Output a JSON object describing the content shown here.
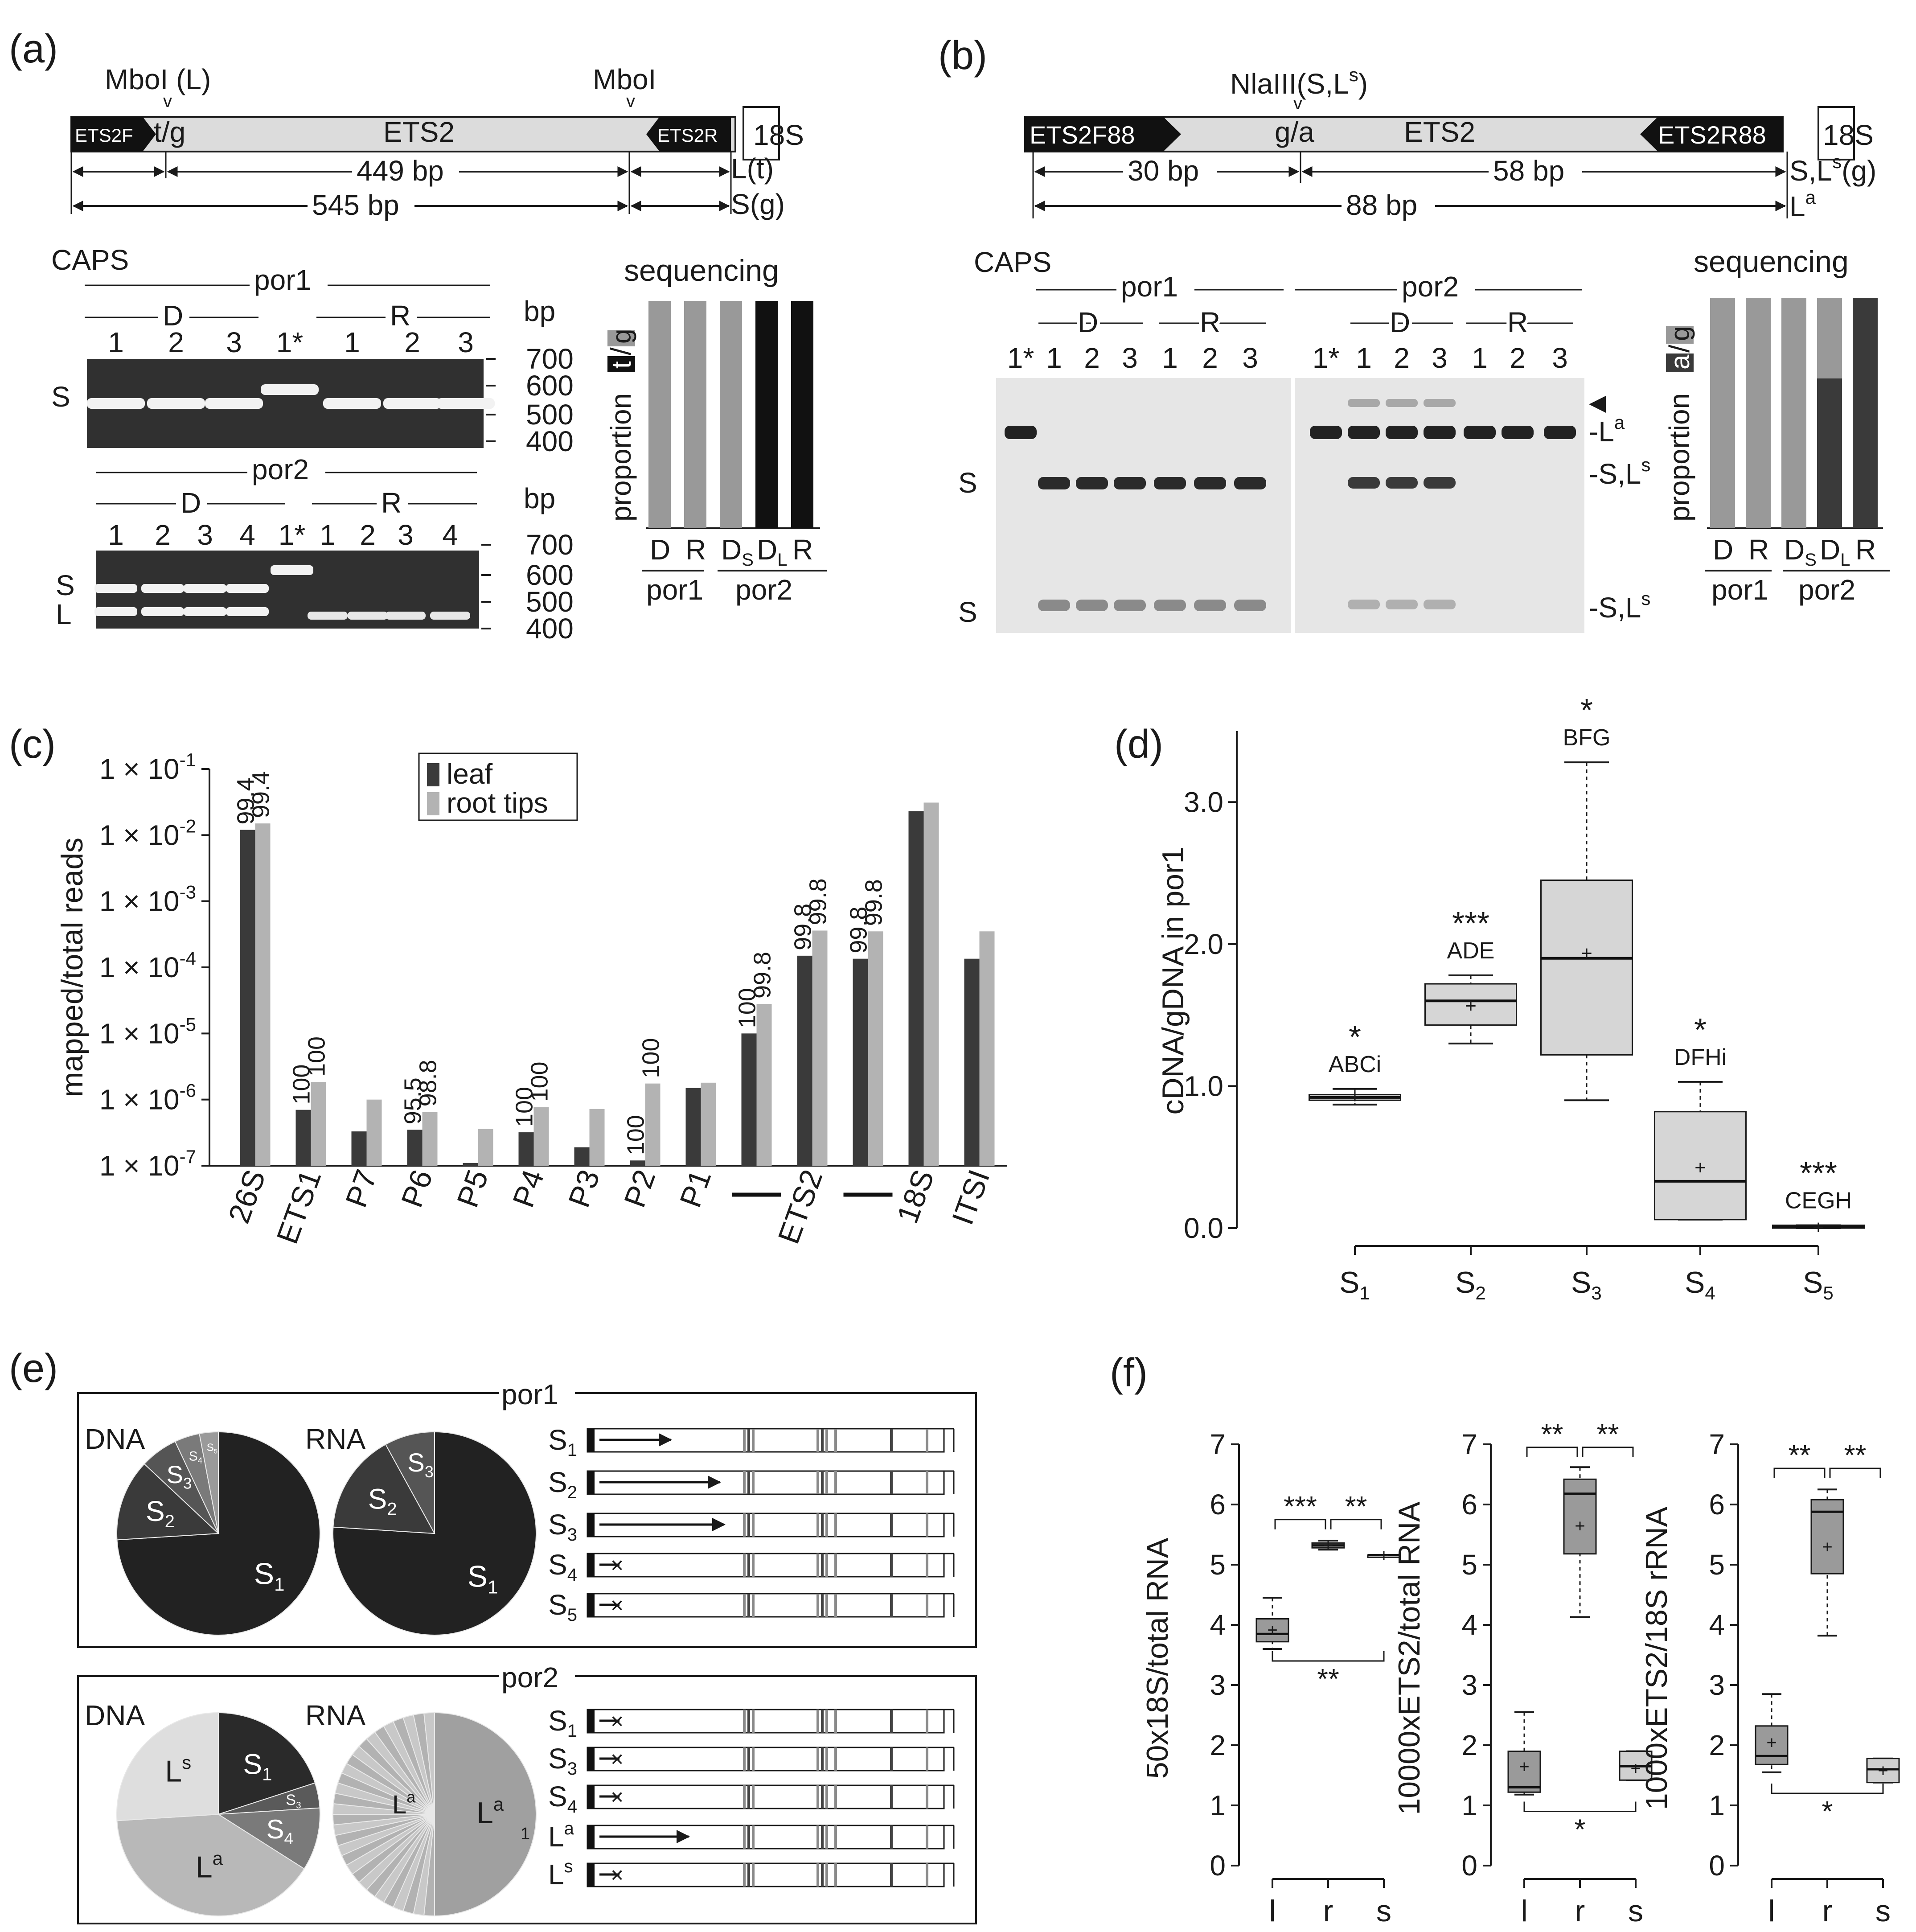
{
  "panels": {
    "a": {
      "label": "(a)",
      "mboi_left": "MboI (L)",
      "mboi_right": "MboI",
      "snp": "t/g",
      "ets2f": "ETS2F",
      "ets2r": "ETS2R",
      "ets2": "ETS2",
      "s18": "18S",
      "bp449": "449 bp",
      "bp545": "545 bp",
      "lt": "L(t)",
      "sg": "S(g)",
      "caps": "CAPS",
      "por1": "por1",
      "por2": "por2",
      "d": "D",
      "r": "R",
      "bp": "bp",
      "lanes_por1": [
        "1",
        "2",
        "3",
        "1*",
        "1",
        "2",
        "3"
      ],
      "lanes_por2": [
        "1",
        "2",
        "3",
        "4",
        "1*",
        "1",
        "2",
        "3",
        "4"
      ],
      "ladder": [
        "700",
        "600",
        "500",
        "400"
      ],
      "band_s": "S",
      "band_l": "L",
      "sequencing": "sequencing",
      "proportion": "proportion",
      "prop_t": "t",
      "prop_g": "g",
      "seq_groups": [
        "D",
        "R",
        "D",
        "D",
        "R"
      ],
      "seq_sub": [
        "",
        "",
        "S",
        "L",
        ""
      ],
      "seq_values_t": [
        0,
        0,
        0,
        1,
        1
      ],
      "seq_por1": "por1",
      "seq_por2": "por2"
    },
    "b": {
      "label": "(b)",
      "nlaiii": "NlaIII(S,L",
      "nlaiii_sup": "s",
      "nlaiii_end": ")",
      "snp": "g/a",
      "ets2f": "ETS2F88",
      "ets2r": "ETS2R88",
      "ets2": "ETS2",
      "s18": "18S",
      "bp30": "30 bp",
      "bp58": "58 bp",
      "bp88": "88 bp",
      "slg": "S,L",
      "slg_sup": "s",
      "slg_end": "(g)",
      "la": "L",
      "la_sup": "a",
      "caps": "CAPS",
      "por1": "por1",
      "por2": "por2",
      "d": "D",
      "r": "R",
      "lanes_por1": [
        "1*",
        "1",
        "2",
        "3",
        "1",
        "2",
        "3"
      ],
      "lanes_por2": [
        "1*",
        "1",
        "2",
        "3",
        "1",
        "2",
        "3"
      ],
      "band_s": "S",
      "band_sl": "S,L",
      "band_sl_sup": "s",
      "band_la": "L",
      "band_la_sup": "a",
      "sequencing": "sequencing",
      "proportion": "proportion",
      "prop_a": "a",
      "prop_g": "g",
      "seq_groups": [
        "D",
        "R",
        "D",
        "D",
        "R"
      ],
      "seq_sub": [
        "",
        "",
        "S",
        "L",
        ""
      ],
      "seq_values_a": [
        0,
        0,
        0,
        0.65,
        1
      ],
      "seq_por1": "por1",
      "seq_por2": "por2"
    },
    "c": {
      "label": "(c)"
    },
    "d": {
      "label": "(d)"
    },
    "e": {
      "label": "(e)",
      "por1": "por1",
      "por2": "por2",
      "dna": "DNA",
      "rna": "RNA",
      "por1_rows": [
        "S1",
        "S2",
        "S3",
        "S4",
        "S5"
      ],
      "por2_rows": [
        "S1",
        "S3",
        "S4",
        "La",
        "Ls"
      ]
    },
    "f": {
      "label": "(f)"
    }
  },
  "chart_data": [
    {
      "id": "c",
      "type": "bar",
      "ylabel": "mapped/total reads",
      "yscale": "log",
      "ylim": [
        1e-07,
        0.1
      ],
      "yticks": [
        "1 × 10-7",
        "1 × 10-6",
        "1 × 10-5",
        "1 × 10-4",
        "1 × 10-3",
        "1 × 10-2",
        "1 × 10-1"
      ],
      "categories": [
        "26S",
        "ETS1",
        "P7",
        "P6",
        "P5",
        "P4",
        "P3",
        "P2",
        "P1",
        "",
        "ETS2",
        "",
        "18S",
        "ITSI"
      ],
      "series": [
        {
          "name": "leaf",
          "color": "#3a3a3a",
          "values": [
            0.012,
            7e-07,
            3.3e-07,
            3.5e-07,
            1.1e-07,
            3.2e-07,
            1.9e-07,
            1.2e-07,
            1.5e-06,
            1e-05,
            0.00015,
            0.000135,
            0.023,
            0.000135
          ]
        },
        {
          "name": "root tips",
          "color": "#b3b3b3",
          "values": [
            0.015,
            1.85e-06,
            1e-06,
            6.5e-07,
            3.6e-07,
            7.7e-07,
            7.2e-07,
            1.75e-06,
            1.8e-06,
            2.8e-05,
            0.00036,
            0.00035,
            0.031,
            0.00035
          ]
        }
      ],
      "bar_labels": [
        [
          "99.4",
          "99.4"
        ],
        [
          "100",
          "100"
        ],
        [
          "",
          ""
        ],
        [
          "95.5",
          "98.8"
        ],
        [
          "",
          ""
        ],
        [
          "100",
          "100"
        ],
        [
          "",
          ""
        ],
        [
          "100",
          "100"
        ],
        [
          "",
          ""
        ],
        [
          "100",
          "99.8"
        ],
        [
          "99.8",
          "99.8"
        ],
        [
          "99.8",
          "99.8"
        ],
        [
          "",
          ""
        ],
        [
          "",
          ""
        ]
      ],
      "legend": "top-center"
    },
    {
      "id": "d",
      "type": "box",
      "ylabel": "cDNA/gDNA in por1",
      "ylim": [
        0,
        3.5
      ],
      "yticks": [
        "0.0",
        "1.0",
        "2.0",
        "3.0"
      ],
      "categories": [
        "S1",
        "S2",
        "S3",
        "S4",
        "S5"
      ],
      "boxes": [
        {
          "min": 0.87,
          "q1": 0.9,
          "median": 0.92,
          "q3": 0.94,
          "max": 0.98,
          "mean": 0.93,
          "stars": "*",
          "letters": "ABCi"
        },
        {
          "min": 1.3,
          "q1": 1.43,
          "median": 1.6,
          "q3": 1.72,
          "max": 1.78,
          "mean": 1.57,
          "stars": "***",
          "letters": "ADE"
        },
        {
          "min": 0.9,
          "q1": 1.22,
          "median": 1.9,
          "q3": 2.45,
          "max": 3.28,
          "mean": 1.94,
          "stars": "*",
          "letters": "BFG"
        },
        {
          "min": 0.06,
          "q1": 0.06,
          "median": 0.33,
          "q3": 0.82,
          "max": 1.03,
          "mean": 0.43,
          "stars": "*",
          "letters": "DFHi"
        },
        {
          "min": 0.0,
          "q1": 0.0,
          "median": 0.01,
          "q3": 0.02,
          "max": 0.02,
          "mean": 0.01,
          "stars": "***",
          "letters": "CEGH"
        }
      ]
    },
    {
      "id": "e_pies",
      "type": "pie",
      "por1_dna": [
        {
          "name": "S1",
          "value": 0.74
        },
        {
          "name": "S2",
          "value": 0.13
        },
        {
          "name": "S3",
          "value": 0.06
        },
        {
          "name": "S4",
          "value": 0.04
        },
        {
          "name": "S5",
          "value": 0.03
        }
      ],
      "por1_rna": [
        {
          "name": "S1",
          "value": 0.76
        },
        {
          "name": "S2",
          "value": 0.16
        },
        {
          "name": "S3",
          "value": 0.08
        }
      ],
      "por2_dna": [
        {
          "name": "S1",
          "value": 0.2
        },
        {
          "name": "S3",
          "value": 0.04
        },
        {
          "name": "S4",
          "value": 0.1
        },
        {
          "name": "La",
          "value": 0.4
        },
        {
          "name": "Ls",
          "value": 0.26
        }
      ],
      "por2_rna_major": 0.5
    },
    {
      "id": "f",
      "type": "box",
      "panels": [
        {
          "ylabel": "50x18S/total RNA",
          "ylim": [
            0,
            7
          ],
          "categories": [
            "l",
            "r",
            "s"
          ],
          "boxes": [
            {
              "min": 3.6,
              "q1": 3.72,
              "median": 3.85,
              "q3": 4.1,
              "max": 4.45,
              "mean": 3.92,
              "color": "#9a9a9a"
            },
            {
              "min": 5.25,
              "q1": 5.28,
              "median": 5.32,
              "q3": 5.36,
              "max": 5.4,
              "mean": 5.32,
              "color": "#9a9a9a"
            },
            {
              "min": 5.16,
              "q1": 5.16,
              "median": 5.16,
              "q3": 5.16,
              "max": 5.16,
              "mean": 5.16,
              "color": "#d0d0d0"
            }
          ],
          "sig": [
            {
              "from": 0,
              "to": 1,
              "label": "***",
              "y": 5.75,
              "up": true
            },
            {
              "from": 1,
              "to": 2,
              "label": "**",
              "y": 5.75,
              "up": true
            },
            {
              "from": 0,
              "to": 2,
              "label": "**",
              "y": 3.4,
              "up": false
            }
          ]
        },
        {
          "ylabel": "10000xETS2/total RNA",
          "ylim": [
            0,
            7
          ],
          "categories": [
            "l",
            "r",
            "s"
          ],
          "boxes": [
            {
              "min": 1.18,
              "q1": 1.22,
              "median": 1.3,
              "q3": 1.9,
              "max": 2.55,
              "mean": 1.65,
              "color": "#9a9a9a"
            },
            {
              "min": 4.13,
              "q1": 5.18,
              "median": 6.18,
              "q3": 6.42,
              "max": 6.62,
              "mean": 5.65,
              "color": "#9a9a9a"
            },
            {
              "min": 1.42,
              "q1": 1.42,
              "median": 1.65,
              "q3": 1.9,
              "max": 1.9,
              "mean": 1.62,
              "color": "#d0d0d0"
            }
          ],
          "sig": [
            {
              "from": 0,
              "to": 1,
              "label": "**",
              "y": 6.95,
              "up": true
            },
            {
              "from": 1,
              "to": 2,
              "label": "**",
              "y": 6.95,
              "up": true
            },
            {
              "from": 0,
              "to": 2,
              "label": "*",
              "y": 0.9,
              "up": false
            }
          ]
        },
        {
          "ylabel": "1000xETS2/18S rRNA",
          "ylim": [
            0,
            7
          ],
          "categories": [
            "l",
            "r",
            "s"
          ],
          "boxes": [
            {
              "min": 1.55,
              "q1": 1.68,
              "median": 1.82,
              "q3": 2.32,
              "max": 2.85,
              "mean": 2.05,
              "color": "#9a9a9a"
            },
            {
              "min": 3.82,
              "q1": 4.85,
              "median": 5.88,
              "q3": 6.08,
              "max": 6.25,
              "mean": 5.3,
              "color": "#9a9a9a"
            },
            {
              "min": 1.38,
              "q1": 1.38,
              "median": 1.6,
              "q3": 1.78,
              "max": 1.78,
              "mean": 1.58,
              "color": "#d0d0d0"
            }
          ],
          "sig": [
            {
              "from": 0,
              "to": 1,
              "label": "**",
              "y": 6.6,
              "up": true
            },
            {
              "from": 1,
              "to": 2,
              "label": "**",
              "y": 6.6,
              "up": true
            },
            {
              "from": 0,
              "to": 2,
              "label": "*",
              "y": 1.2,
              "up": false
            }
          ]
        }
      ]
    }
  ]
}
